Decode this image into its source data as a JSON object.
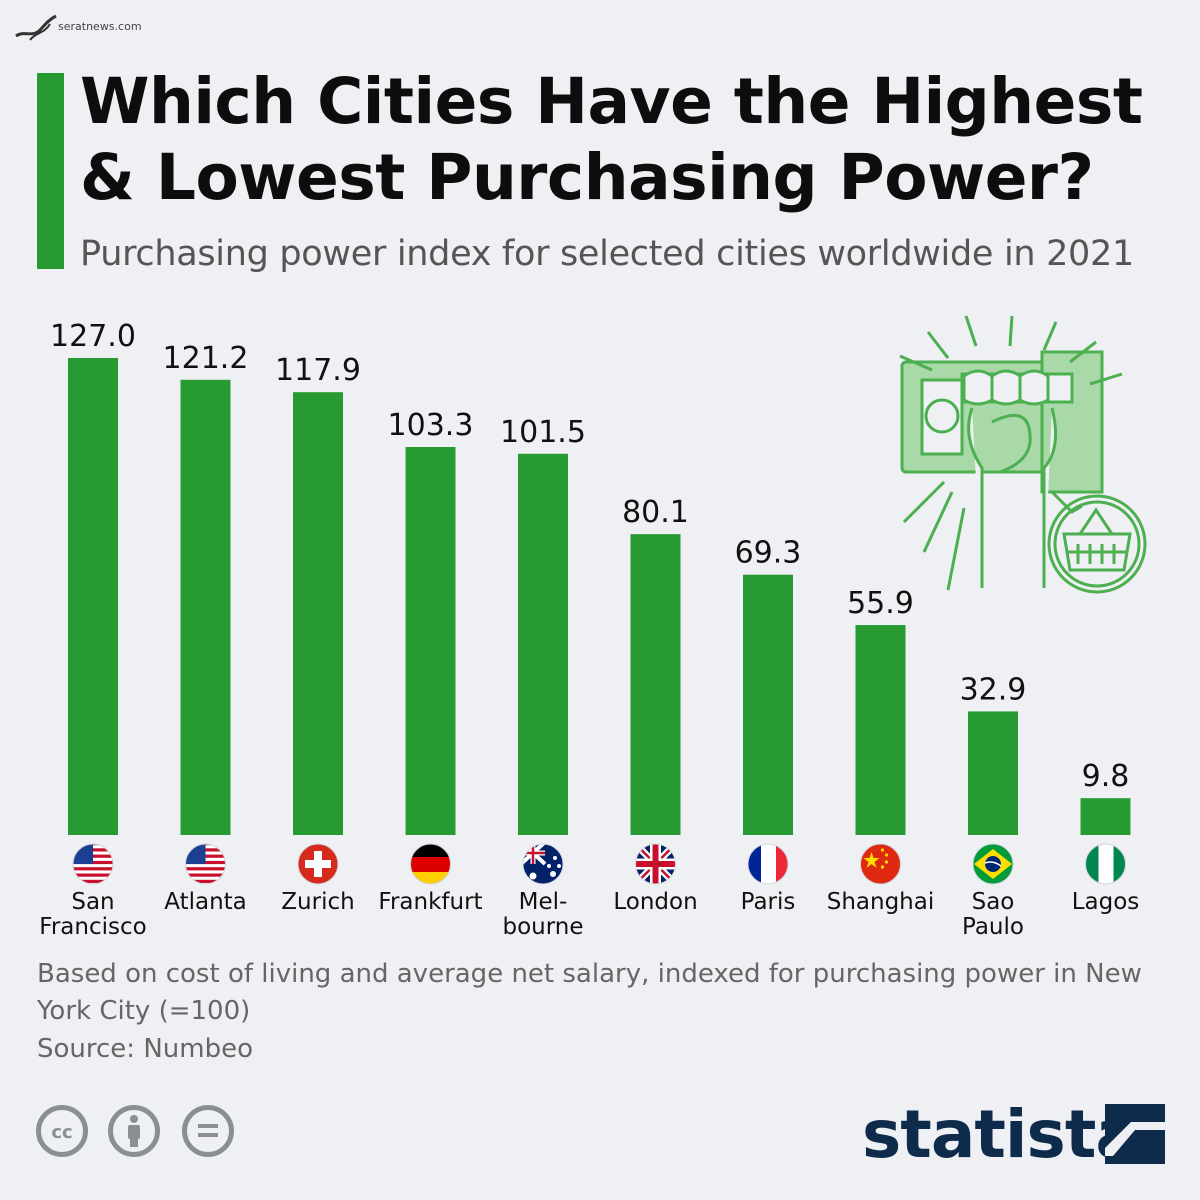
{
  "header": {
    "watermark": "seratnews.com",
    "title_line1": "Which Cities Have the Highest",
    "title_line2": "& Lowest Purchasing Power?",
    "subtitle": "Purchasing power index for selected cities worldwide in 2021"
  },
  "colors": {
    "accent": "#289a32",
    "bar": "#289a32",
    "brand": "#0f2b4c"
  },
  "chart_data": {
    "type": "bar",
    "title": "Which Cities Have the Highest & Lowest Purchasing Power?",
    "subtitle": "Purchasing power index for selected cities worldwide in 2021",
    "categories": [
      "San Francisco",
      "Atlanta",
      "Zurich",
      "Frankfurt",
      "Melbourne",
      "London",
      "Paris",
      "Shanghai",
      "Sao Paulo",
      "Lagos"
    ],
    "category_display_lines": [
      [
        "San",
        "Francisco"
      ],
      [
        "Atlanta"
      ],
      [
        "Zurich"
      ],
      [
        "Frankfurt"
      ],
      [
        "Mel-",
        "bourne"
      ],
      [
        "London"
      ],
      [
        "Paris"
      ],
      [
        "Shanghai"
      ],
      [
        "Sao",
        "Paulo"
      ],
      [
        "Lagos"
      ]
    ],
    "values": [
      127.0,
      121.2,
      117.9,
      103.3,
      101.5,
      80.1,
      69.3,
      55.9,
      32.9,
      9.8
    ],
    "value_labels": [
      "127.0",
      "121.2",
      "117.9",
      "103.3",
      "101.5",
      "80.1",
      "69.3",
      "55.9",
      "32.9",
      "9.8"
    ],
    "flags": [
      "us-flag-icon",
      "us-flag-icon",
      "switzerland-flag-icon",
      "germany-flag-icon",
      "australia-flag-icon",
      "uk-flag-icon",
      "france-flag-icon",
      "china-flag-icon",
      "brazil-flag-icon",
      "nigeria-flag-icon"
    ],
    "xlabel": "",
    "ylabel": "",
    "ylim": [
      0,
      127
    ],
    "grid": false,
    "legend": "none"
  },
  "footer": {
    "note": "Based on cost of living and average net salary, indexed for purchasing power in New York City (=100)",
    "source": "Source: Numbeo",
    "logo": "statista",
    "license_icons": [
      "creative-commons-icon",
      "attribution-icon",
      "no-derivatives-icon"
    ]
  }
}
